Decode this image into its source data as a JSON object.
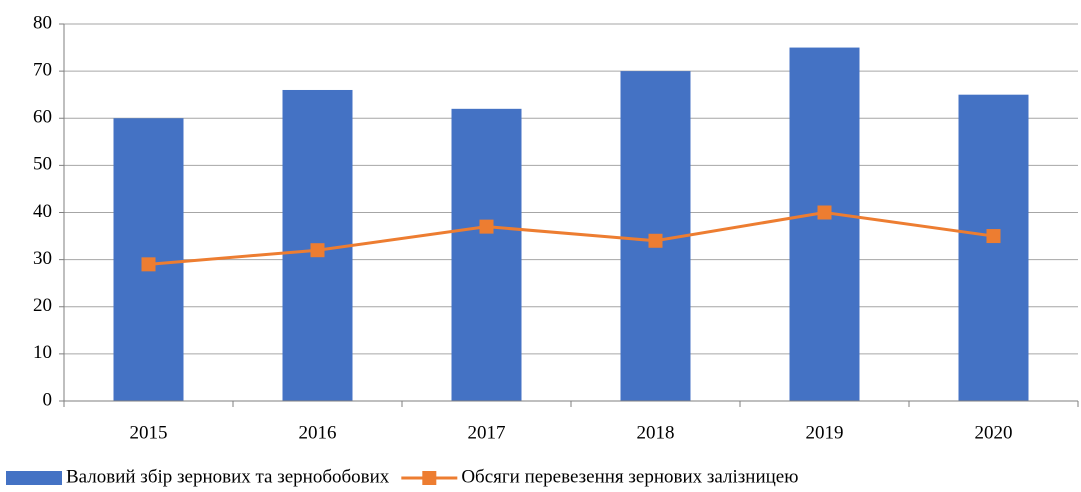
{
  "chart_data": {
    "type": "combo",
    "categories": [
      "2015",
      "2016",
      "2017",
      "2018",
      "2019",
      "2020"
    ],
    "series": [
      {
        "name": "Валовий збір зернових та зернобобових",
        "type": "bar",
        "color": "#4472c4",
        "values": [
          60,
          66,
          62,
          70,
          75,
          65
        ]
      },
      {
        "name": "Обсяги перевезення зернових залізницею",
        "type": "line",
        "color": "#ed7d31",
        "values": [
          29,
          32,
          37,
          34,
          40,
          35
        ]
      }
    ],
    "ylim": [
      0,
      80
    ],
    "yticks": [
      0,
      10,
      20,
      30,
      40,
      50,
      60,
      70,
      80
    ],
    "grid": true,
    "legend": "bottom"
  }
}
